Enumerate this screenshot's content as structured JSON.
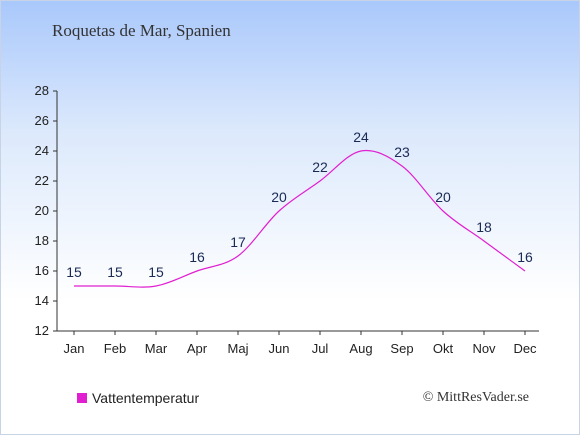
{
  "chart_data": {
    "type": "line",
    "title": "Roquetas de Mar, Spanien",
    "categories": [
      "Jan",
      "Feb",
      "Mar",
      "Apr",
      "Maj",
      "Jun",
      "Jul",
      "Aug",
      "Sep",
      "Okt",
      "Nov",
      "Dec"
    ],
    "series": [
      {
        "name": "Vattentemperatur",
        "values": [
          15,
          15,
          15,
          16,
          17,
          20,
          22,
          24,
          23,
          20,
          18,
          16
        ],
        "color": "#e020d0"
      }
    ],
    "y_ticks": [
      12,
      14,
      16,
      18,
      20,
      22,
      24,
      26,
      28
    ],
    "ylim": [
      12,
      28
    ],
    "grid": false,
    "legend_position": "bottom-left"
  },
  "credit": "© MittResVader.se"
}
